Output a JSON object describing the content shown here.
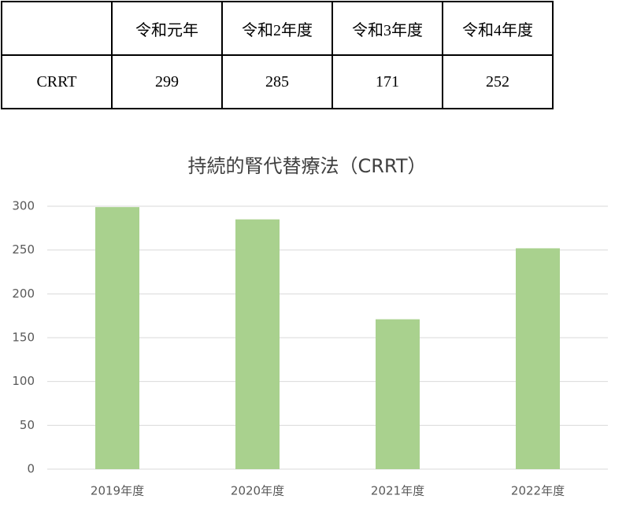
{
  "table": {
    "header": [
      "令和元年",
      "令和2年度",
      "令和3年度",
      "令和4年度"
    ],
    "row_label": "CRRT",
    "row": [
      299,
      285,
      171,
      252
    ]
  },
  "chart_data": {
    "type": "bar",
    "title": "持続的腎代替療法（CRRT）",
    "categories": [
      "2019年度",
      "2020年度",
      "2021年度",
      "2022年度"
    ],
    "values": [
      299,
      285,
      171,
      252
    ],
    "color": "#a9d18e",
    "ylim": [
      0,
      300
    ],
    "yticks": [
      0,
      50,
      100,
      150,
      200,
      250,
      300
    ],
    "grid": true
  }
}
